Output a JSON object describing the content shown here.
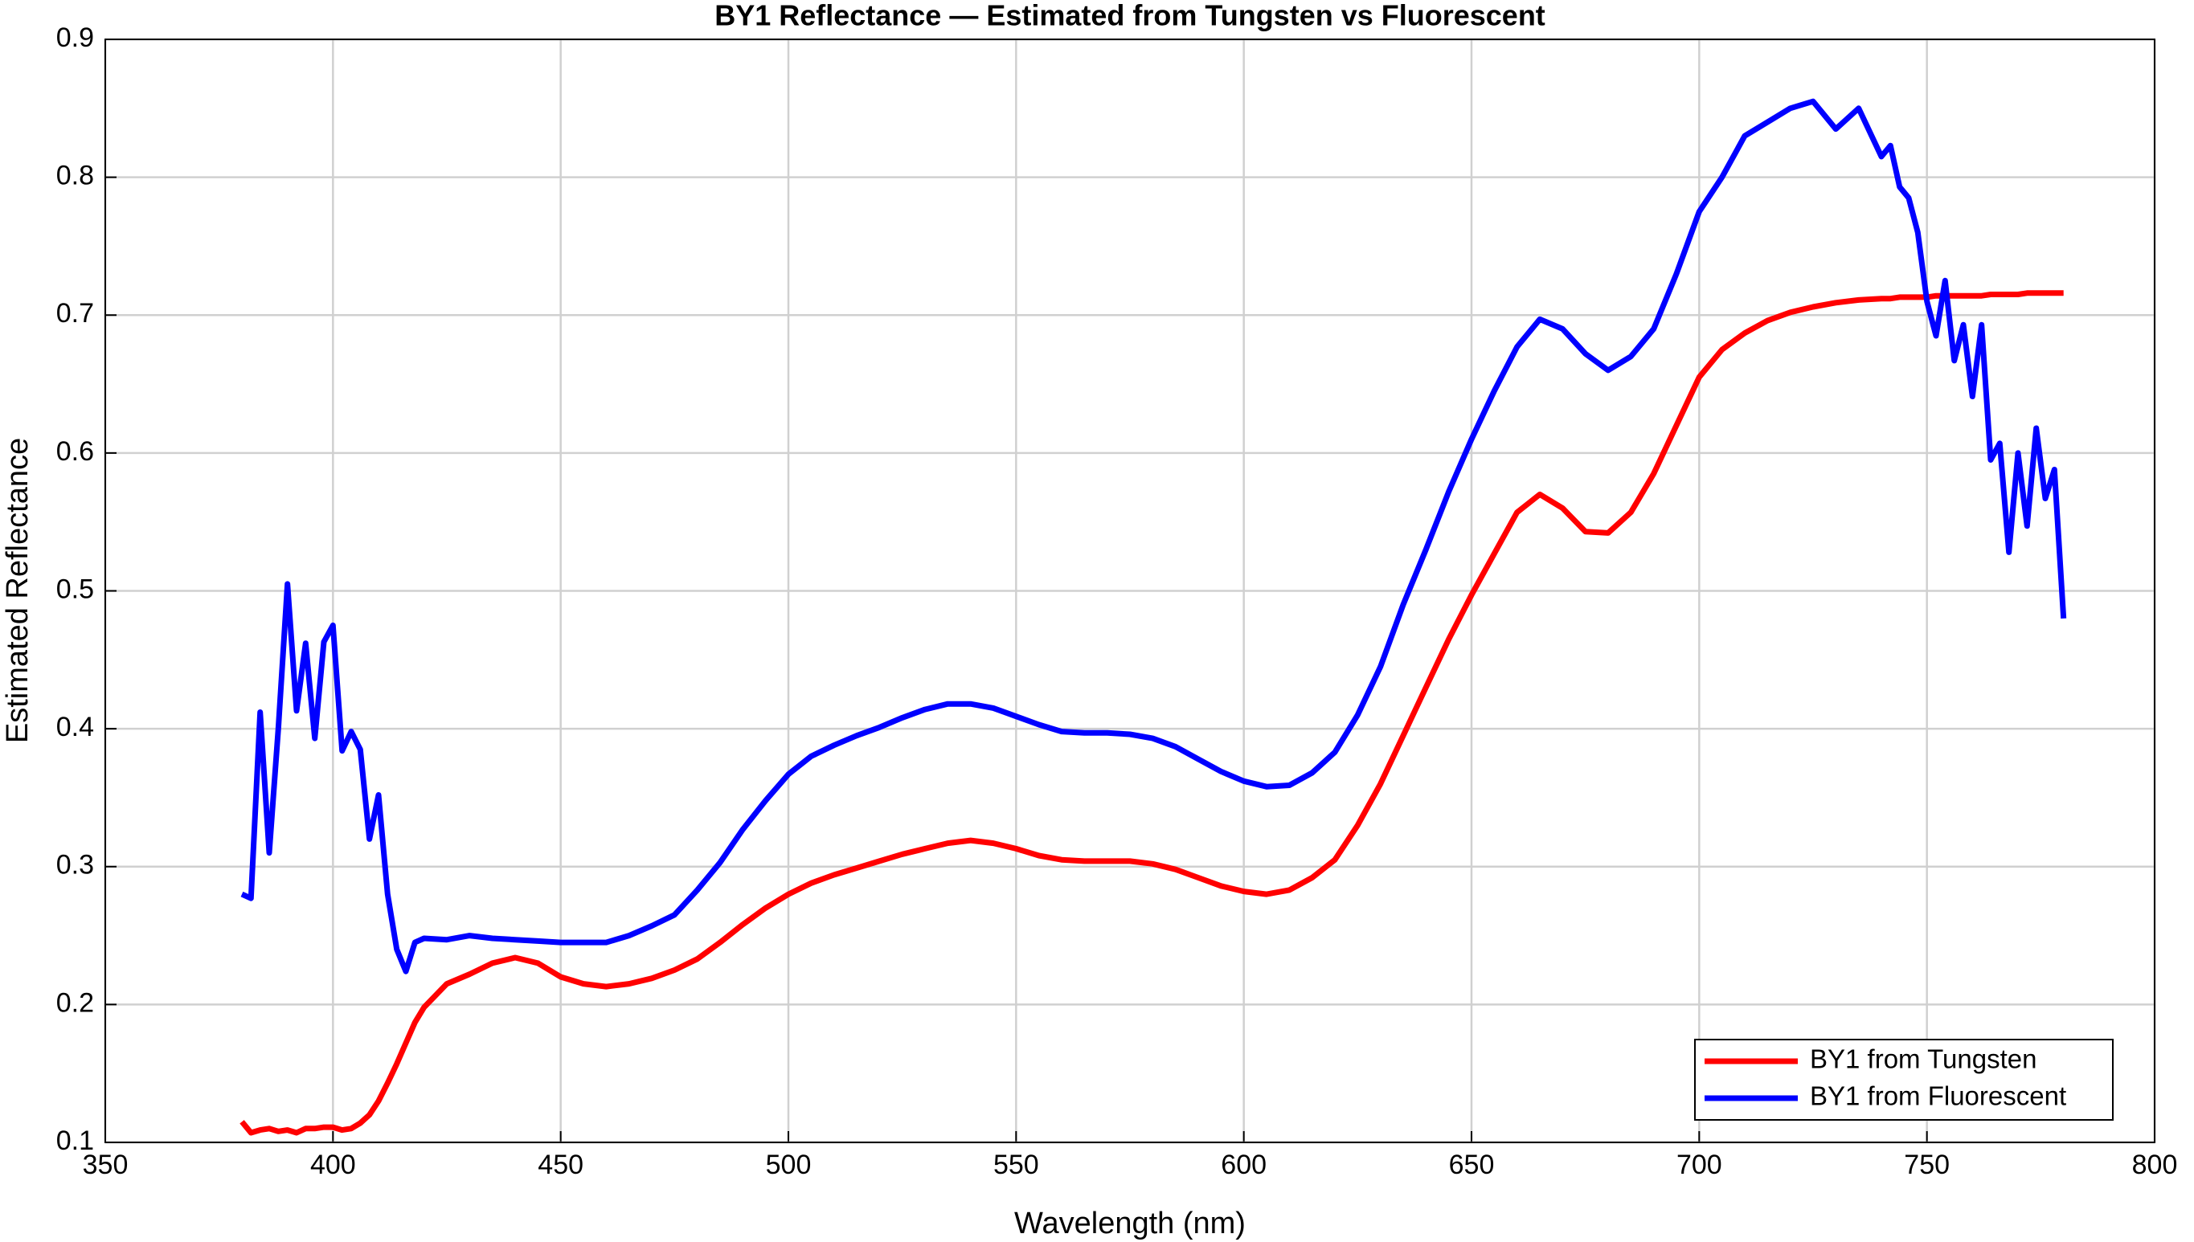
{
  "chart_data": {
    "type": "line",
    "title": "BY1 Reflectance — Estimated from Tungsten vs Fluorescent",
    "x_label": "Wavelength (nm)",
    "y_label": "Estimated Reflectance",
    "x": [
      380,
      382,
      384,
      386,
      388,
      390,
      392,
      394,
      396,
      398,
      400,
      402,
      404,
      406,
      408,
      410,
      412,
      414,
      416,
      418,
      420,
      425,
      430,
      435,
      440,
      445,
      450,
      455,
      460,
      465,
      470,
      475,
      480,
      485,
      490,
      495,
      500,
      505,
      510,
      515,
      520,
      525,
      530,
      535,
      540,
      545,
      550,
      555,
      560,
      565,
      570,
      575,
      580,
      585,
      590,
      595,
      600,
      605,
      610,
      615,
      620,
      625,
      630,
      635,
      640,
      645,
      650,
      655,
      660,
      665,
      670,
      675,
      680,
      685,
      690,
      695,
      700,
      705,
      710,
      715,
      720,
      725,
      730,
      735,
      740,
      742,
      744,
      746,
      748,
      750,
      752,
      754,
      756,
      758,
      760,
      762,
      764,
      766,
      768,
      770,
      772,
      774,
      776,
      778,
      780
    ],
    "series": [
      {
        "name": "BY1 from Tungsten",
        "color": "#ff0000",
        "values": [
          0.115,
          0.107,
          0.109,
          0.11,
          0.108,
          0.109,
          0.107,
          0.11,
          0.11,
          0.111,
          0.111,
          0.109,
          0.11,
          0.114,
          0.12,
          0.13,
          0.143,
          0.157,
          0.172,
          0.187,
          0.198,
          0.215,
          0.222,
          0.23,
          0.234,
          0.23,
          0.22,
          0.215,
          0.213,
          0.215,
          0.219,
          0.225,
          0.233,
          0.245,
          0.258,
          0.27,
          0.28,
          0.288,
          0.294,
          0.299,
          0.304,
          0.309,
          0.313,
          0.317,
          0.319,
          0.317,
          0.313,
          0.308,
          0.305,
          0.304,
          0.304,
          0.304,
          0.302,
          0.298,
          0.292,
          0.286,
          0.282,
          0.28,
          0.283,
          0.292,
          0.305,
          0.33,
          0.36,
          0.395,
          0.43,
          0.465,
          0.497,
          0.527,
          0.557,
          0.57,
          0.56,
          0.543,
          0.542,
          0.557,
          0.585,
          0.62,
          0.655,
          0.675,
          0.687,
          0.696,
          0.702,
          0.706,
          0.709,
          0.711,
          0.712,
          0.712,
          0.713,
          0.713,
          0.713,
          0.713,
          0.714,
          0.714,
          0.714,
          0.714,
          0.714,
          0.714,
          0.715,
          0.715,
          0.715,
          0.715,
          0.716,
          0.716,
          0.716,
          0.716,
          0.716
        ]
      },
      {
        "name": "BY1 from Fluorescent",
        "color": "#0000ff",
        "values": [
          0.28,
          0.277,
          0.412,
          0.31,
          0.4,
          0.505,
          0.413,
          0.462,
          0.393,
          0.463,
          0.475,
          0.384,
          0.398,
          0.385,
          0.32,
          0.352,
          0.28,
          0.24,
          0.224,
          0.245,
          0.248,
          0.247,
          0.25,
          0.248,
          0.247,
          0.246,
          0.245,
          0.245,
          0.245,
          0.25,
          0.257,
          0.265,
          0.283,
          0.303,
          0.327,
          0.348,
          0.367,
          0.38,
          0.388,
          0.395,
          0.401,
          0.408,
          0.414,
          0.418,
          0.418,
          0.415,
          0.409,
          0.403,
          0.398,
          0.397,
          0.397,
          0.396,
          0.393,
          0.387,
          0.378,
          0.369,
          0.362,
          0.358,
          0.359,
          0.368,
          0.383,
          0.41,
          0.445,
          0.49,
          0.53,
          0.572,
          0.61,
          0.645,
          0.677,
          0.697,
          0.69,
          0.672,
          0.66,
          0.67,
          0.69,
          0.73,
          0.775,
          0.8,
          0.83,
          0.84,
          0.85,
          0.855,
          0.835,
          0.85,
          0.815,
          0.823,
          0.793,
          0.785,
          0.76,
          0.71,
          0.685,
          0.725,
          0.667,
          0.693,
          0.641,
          0.693,
          0.595,
          0.607,
          0.528,
          0.6,
          0.547,
          0.618,
          0.567,
          0.588,
          0.48
        ]
      }
    ],
    "xlim": [
      350,
      800
    ],
    "xticks": [
      350,
      400,
      450,
      500,
      550,
      600,
      650,
      700,
      750,
      800
    ],
    "ylim": [
      0.1,
      0.9
    ],
    "yticks": [
      0.1,
      0.2,
      0.3,
      0.4,
      0.5,
      0.6,
      0.7,
      0.8,
      0.9
    ],
    "grid": true,
    "legend": "lower right"
  }
}
